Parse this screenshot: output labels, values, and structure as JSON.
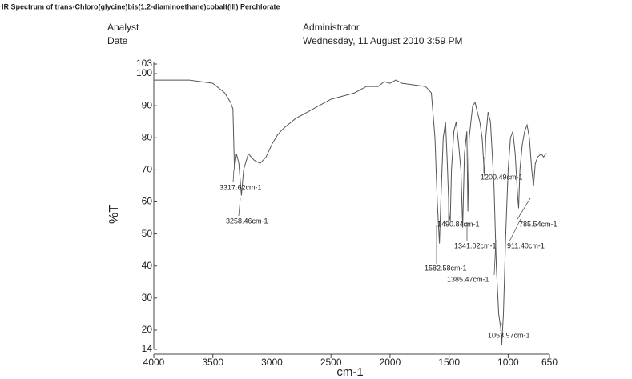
{
  "header": {
    "title": "IR Spectrum of trans-Chloro(glycine)bis(1,2-diaminoethane)cobalt(III) Perchlorate",
    "analyst_label": "Analyst",
    "analyst": "Administrator",
    "date_label": "Date",
    "date": "Wednesday, 11 August 2010 3:59 PM"
  },
  "chart_data": {
    "type": "line",
    "xlabel": "cm-1",
    "ylabel": "%T",
    "color": "#555555",
    "x": [
      4000,
      3700,
      3500,
      3400,
      3350,
      3330,
      3317,
      3300,
      3280,
      3258,
      3240,
      3200,
      3150,
      3100,
      3050,
      3000,
      2950,
      2900,
      2800,
      2700,
      2600,
      2500,
      2400,
      2300,
      2200,
      2100,
      2050,
      2000,
      1950,
      1900,
      1800,
      1700,
      1650,
      1620,
      1600,
      1582,
      1570,
      1550,
      1530,
      1515,
      1500,
      1490,
      1480,
      1460,
      1440,
      1420,
      1400,
      1385,
      1370,
      1350,
      1341,
      1330,
      1300,
      1280,
      1260,
      1240,
      1220,
      1200,
      1190,
      1170,
      1150,
      1120,
      1100,
      1080,
      1060,
      1054,
      1040,
      1020,
      1000,
      980,
      960,
      940,
      920,
      911,
      900,
      880,
      860,
      840,
      820,
      800,
      785,
      770,
      750,
      720,
      700,
      680,
      670
    ],
    "values": [
      98,
      98,
      97,
      94,
      91,
      89,
      70,
      75,
      72,
      62,
      70,
      75,
      73,
      72,
      74,
      78,
      81,
      83,
      86,
      88,
      90,
      92,
      93,
      94,
      96,
      96,
      97.5,
      97,
      98,
      97,
      96.5,
      96,
      94,
      80,
      60,
      47,
      60,
      80,
      85,
      72,
      56,
      54,
      70,
      82,
      85,
      78,
      70,
      52,
      75,
      82,
      57,
      80,
      90,
      91,
      88,
      85,
      80,
      68,
      80,
      88,
      85,
      65,
      40,
      25,
      20,
      15.5,
      25,
      50,
      70,
      80,
      82,
      75,
      62,
      58,
      70,
      78,
      82,
      84,
      80,
      70,
      65,
      72,
      74,
      75,
      74,
      75,
      75
    ],
    "xlim": [
      4000,
      650
    ],
    "xticks": [
      4000,
      3500,
      3000,
      2500,
      2000,
      1500,
      1000,
      650
    ],
    "ylim": [
      14,
      103
    ],
    "yticks": [
      14,
      20,
      30,
      40,
      50,
      60,
      70,
      80,
      90,
      100,
      103
    ],
    "annotations": [
      "3317.62cm-1",
      "3258.46cm-1",
      "1490.84cm-1",
      "1341.02cm-1",
      "1582.58cm-1",
      "1385.47cm-1",
      "1200.49cm-1",
      "785.54cm-1",
      "911.40cm-1",
      "1053.97cm-1"
    ]
  }
}
